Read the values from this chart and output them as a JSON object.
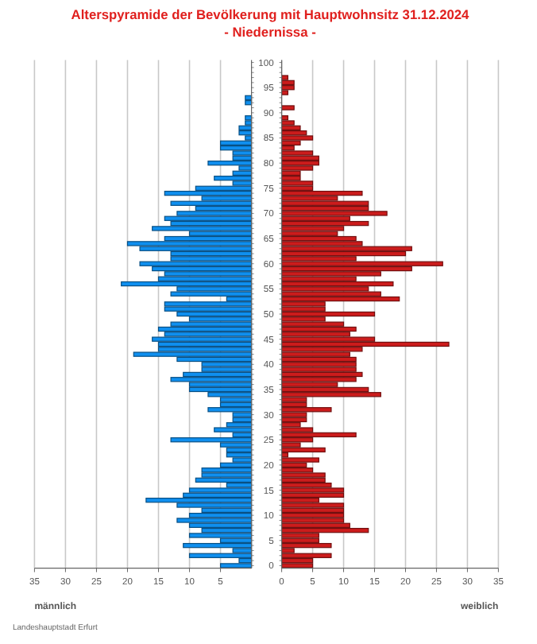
{
  "chart_data": [
    {
      "type": "bar",
      "orientation": "horizontal",
      "title": "Alterspyramide der Bevölkerung mit Hauptwohnsitz 31.12.2024",
      "subtitle": "- Niedernissa -",
      "categories": [
        null,
        null,
        null,
        null,
        null,
        null,
        null,
        null,
        null,
        null,
        null,
        null,
        null,
        null,
        null,
        null,
        null,
        null,
        null,
        null,
        null,
        null,
        null,
        null,
        null,
        null,
        null,
        null,
        null,
        null,
        null,
        null,
        null,
        null,
        null,
        null,
        null,
        null,
        null,
        null,
        null,
        null,
        null,
        null,
        null,
        null,
        null,
        null,
        null,
        null,
        null,
        null,
        null,
        null,
        null,
        null,
        null,
        null,
        null,
        null,
        null,
        null,
        null,
        null,
        null,
        null,
        null,
        null,
        null,
        null,
        null,
        null,
        null,
        null,
        null,
        null,
        null,
        null,
        null,
        null,
        null,
        null,
        null,
        null,
        null,
        null,
        null,
        null,
        null,
        null,
        null,
        null,
        null,
        null,
        null,
        null,
        null,
        null,
        null,
        null,
        null
      ],
      "series": [
        {
          "name": "männlich",
          "color": "#0f8fef",
          "values": [
            0,
            0,
            0,
            0,
            0,
            0,
            0,
            1,
            1,
            0,
            0,
            1,
            1,
            2,
            2,
            1,
            5,
            5,
            3,
            3,
            7,
            2,
            3,
            6,
            3,
            9,
            14,
            8,
            13,
            9,
            12,
            14,
            13,
            16,
            10,
            14,
            20,
            18,
            13,
            13,
            18,
            16,
            14,
            15,
            21,
            12,
            13,
            4,
            14,
            14,
            12,
            10,
            13,
            15,
            14,
            16,
            15,
            15,
            19,
            12,
            8,
            8,
            11,
            13,
            10,
            10,
            7,
            5,
            5,
            7,
            3,
            3,
            4,
            6,
            3,
            13,
            5,
            4,
            4,
            3,
            5,
            8,
            8,
            9,
            4,
            10,
            11,
            17,
            12,
            8,
            10,
            12,
            10,
            8,
            10,
            5,
            11,
            3,
            10,
            2,
            5
          ]
        }
      ],
      "xlim": [
        35,
        0
      ],
      "xticks": [
        35,
        30,
        25,
        20,
        15,
        10,
        5
      ],
      "grid": "x",
      "tick_labels": "x",
      "annotations": [
        "Landeshauptstadt Erfurt"
      ]
    },
    {
      "type": "bar",
      "orientation": "horizontal",
      "categories": [
        "100",
        null,
        null,
        null,
        null,
        "95",
        null,
        null,
        null,
        null,
        "90",
        null,
        null,
        null,
        null,
        "85",
        null,
        null,
        null,
        null,
        "80",
        null,
        null,
        null,
        null,
        "75",
        null,
        null,
        null,
        null,
        "70",
        null,
        null,
        null,
        null,
        "65",
        null,
        null,
        null,
        null,
        "60",
        null,
        null,
        null,
        null,
        "55",
        null,
        null,
        null,
        null,
        "50",
        null,
        null,
        null,
        null,
        "45",
        null,
        null,
        null,
        null,
        "40",
        null,
        null,
        null,
        null,
        "35",
        null,
        null,
        null,
        null,
        "30",
        null,
        null,
        null,
        null,
        "25",
        null,
        null,
        null,
        null,
        "20",
        null,
        null,
        null,
        null,
        "15",
        null,
        null,
        null,
        null,
        "10",
        null,
        null,
        null,
        null,
        "5",
        null,
        null,
        null,
        null,
        "0"
      ],
      "series": [
        {
          "name": "weiblich",
          "color": "#cc1c1c",
          "values": [
            0,
            0,
            0,
            1,
            2,
            2,
            1,
            0,
            0,
            2,
            0,
            1,
            2,
            3,
            4,
            5,
            3,
            2,
            5,
            6,
            6,
            5,
            3,
            3,
            5,
            5,
            13,
            9,
            14,
            14,
            17,
            11,
            14,
            10,
            9,
            12,
            13,
            21,
            20,
            12,
            26,
            21,
            16,
            12,
            18,
            14,
            16,
            19,
            7,
            7,
            15,
            7,
            10,
            12,
            11,
            15,
            27,
            13,
            11,
            12,
            12,
            12,
            13,
            12,
            9,
            14,
            16,
            4,
            4,
            8,
            4,
            4,
            3,
            5,
            12,
            5,
            3,
            7,
            1,
            6,
            4,
            5,
            7,
            7,
            8,
            10,
            10,
            6,
            10,
            10,
            10,
            10,
            11,
            14,
            6,
            6,
            8,
            2,
            8,
            5,
            5
          ]
        }
      ],
      "xlim": [
        0,
        35
      ],
      "xticks": [
        0,
        5,
        10,
        15,
        20,
        25,
        30,
        35
      ],
      "grid": "x"
    }
  ]
}
